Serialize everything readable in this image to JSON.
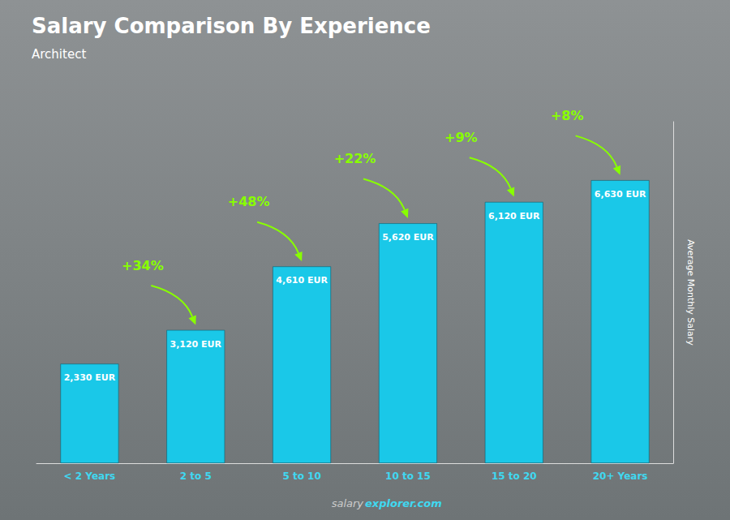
{
  "chart_data": {
    "type": "bar",
    "title": "Salary Comparison By Experience",
    "subtitle": "Architect",
    "ylabel": "Average Monthly Salary",
    "categories": [
      "< 2 Years",
      "2 to 5",
      "5 to 10",
      "10 to 15",
      "15 to 20",
      "20+ Years"
    ],
    "values": [
      2330,
      3120,
      4610,
      5620,
      6120,
      6630
    ],
    "value_labels": [
      "2,330 EUR",
      "3,120 EUR",
      "4,610 EUR",
      "5,620 EUR",
      "6,120 EUR",
      "6,630 EUR"
    ],
    "data_labels": true,
    "annotations": [
      "+34%",
      "+48%",
      "+22%",
      "+9%",
      "+8%"
    ],
    "watermark": [
      "salary",
      "explorer.com"
    ],
    "color": "#1AC8E8",
    "ylim": [
      0,
      8000
    ],
    "grid": false,
    "tick_labels": "x"
  }
}
